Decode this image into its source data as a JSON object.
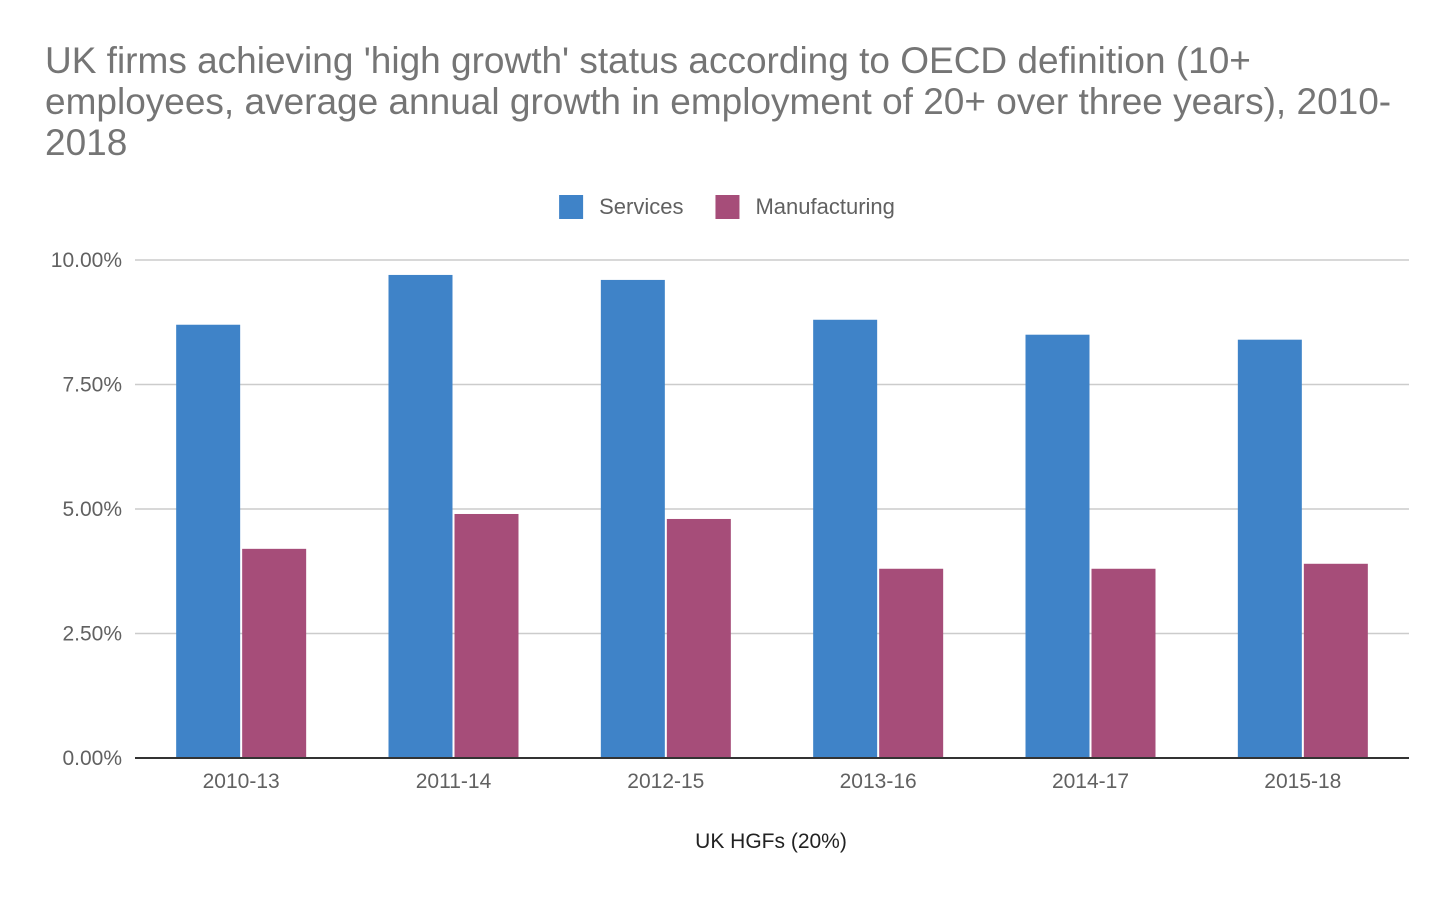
{
  "chart_data": {
    "type": "bar",
    "title": "UK firms achieving 'high growth' status according to OECD definition (10+ employees, average annual growth in employment of 20+ over three years), 2010-2018",
    "xlabel": "UK HGFs (20%)",
    "ylabel": "",
    "categories": [
      "2010-13",
      "2011-14",
      "2012-15",
      "2013-16",
      "2014-17",
      "2015-18"
    ],
    "series": [
      {
        "name": "Services",
        "color": "#3f83c8",
        "values": [
          8.7,
          9.7,
          9.6,
          8.8,
          8.5,
          8.4
        ]
      },
      {
        "name": "Manufacturing",
        "color": "#a64d79",
        "values": [
          4.2,
          4.9,
          4.8,
          3.8,
          3.8,
          3.9
        ]
      }
    ],
    "ylim": [
      0,
      10
    ],
    "yticks": [
      0,
      2.5,
      5,
      7.5,
      10
    ],
    "ytick_labels": [
      "0.00%",
      "2.50%",
      "5.00%",
      "7.50%",
      "10.00%"
    ],
    "grid": true,
    "legend_position": "top-center"
  }
}
